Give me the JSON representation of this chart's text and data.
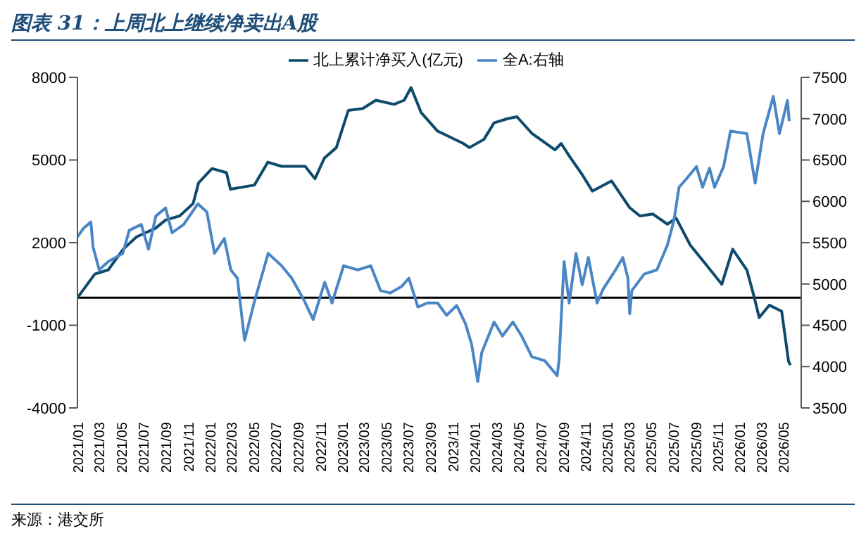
{
  "chart_data": {
    "type": "line",
    "title": "图表 31：上周北上继续净卖出A股",
    "annotations": [
      "来源：港交所"
    ],
    "legend": "top",
    "marker": "none",
    "line_style": "solid",
    "xlim": [
      "2021-01-01",
      "2026-06-20"
    ],
    "xticks": [
      {
        "value": "2021-01",
        "label": "2021/01"
      },
      {
        "value": "2021-03",
        "label": "2021/03"
      },
      {
        "value": "2021-05",
        "label": "2021/05"
      },
      {
        "value": "2021-07",
        "label": "2021/07"
      },
      {
        "value": "2021-09",
        "label": "2021/09"
      },
      {
        "value": "2021-11",
        "label": "2021/11"
      },
      {
        "value": "2022-01",
        "label": "2022/01"
      },
      {
        "value": "2022-03",
        "label": "2022/03"
      },
      {
        "value": "2022-05",
        "label": "2022/05"
      },
      {
        "value": "2022-07",
        "label": "2022/07"
      },
      {
        "value": "2022-09",
        "label": "2022/09"
      },
      {
        "value": "2022-11",
        "label": "2022/11"
      },
      {
        "value": "2023-01",
        "label": "2023/01"
      },
      {
        "value": "2023-03",
        "label": "2023/03"
      },
      {
        "value": "2023-05",
        "label": "2023/05"
      },
      {
        "value": "2023-07",
        "label": "2023/07"
      },
      {
        "value": "2023-09",
        "label": "2023/09"
      },
      {
        "value": "2023-11",
        "label": "2023/11"
      },
      {
        "value": "2024-01",
        "label": "2024/01"
      },
      {
        "value": "2024-03",
        "label": "2024/03"
      },
      {
        "value": "2024-05",
        "label": "2024/05"
      },
      {
        "value": "2024-07",
        "label": "2024/07"
      },
      {
        "value": "2024-09",
        "label": "2024/09"
      },
      {
        "value": "2024-11",
        "label": "2024/11"
      },
      {
        "value": "2025-01",
        "label": "2025/01"
      },
      {
        "value": "2025-03",
        "label": "2025/03"
      },
      {
        "value": "2025-05",
        "label": "2025/05"
      },
      {
        "value": "2025-07",
        "label": "2025/07"
      },
      {
        "value": "2025-09",
        "label": "2025/09"
      },
      {
        "value": "2025-11",
        "label": "2025/11"
      },
      {
        "value": "2026-01",
        "label": "2026/01"
      },
      {
        "value": "2026-03",
        "label": "2026/03"
      },
      {
        "value": "2026-05",
        "label": "2026/05"
      }
    ],
    "ylim": [
      -4000,
      8000
    ],
    "yticks": [
      -4000,
      -1000,
      2000,
      5000,
      8000
    ],
    "y2lim": [
      3500,
      7500
    ],
    "y2ticks": [
      3500,
      4000,
      4500,
      5000,
      5500,
      6000,
      6500,
      7000,
      7500
    ],
    "ref_lines": [
      {
        "axis": "y",
        "value": 0,
        "color": "#000000"
      }
    ],
    "series": [
      {
        "name": "北上累计净买入(亿元)",
        "color": "#0d4a6b",
        "x": [
          "2021-01-01",
          "2021-02-18",
          "2021-03-27",
          "2021-05-07",
          "2021-06-13",
          "2021-08-04",
          "2021-09-01",
          "2021-10-10",
          "2021-11-16",
          "2021-12-01",
          "2022-01-07",
          "2022-02-16",
          "2022-02-27",
          "2022-05-04",
          "2022-06-10",
          "2022-07-18",
          "2022-09-21",
          "2022-10-18",
          "2022-11-13",
          "2022-12-16",
          "2023-01-18",
          "2023-02-27",
          "2023-04-04",
          "2023-05-24",
          "2023-06-21",
          "2023-07-10",
          "2023-08-07",
          "2023-09-21",
          "2023-10-04",
          "2023-12-01",
          "2023-12-18",
          "2024-01-27",
          "2024-02-24",
          "2024-04-01",
          "2024-04-27",
          "2024-06-07",
          "2024-08-10",
          "2024-08-27",
          "2024-09-18",
          "2024-10-24",
          "2024-11-21",
          "2025-01-13",
          "2025-03-04",
          "2025-04-01",
          "2025-05-07",
          "2025-06-16",
          "2025-07-10",
          "2025-08-18",
          "2025-09-24",
          "2025-11-13",
          "2025-12-13",
          "2026-01-21",
          "2026-02-10",
          "2026-02-24",
          "2026-03-24",
          "2026-04-27",
          "2026-05-16",
          "2026-05-21"
        ],
        "values": [
          0,
          860,
          1010,
          1760,
          2210,
          2520,
          2820,
          2970,
          3420,
          4170,
          4690,
          4540,
          3940,
          4090,
          4920,
          4770,
          4770,
          4320,
          5070,
          5450,
          6800,
          6870,
          7170,
          7020,
          7170,
          7630,
          6720,
          6050,
          5970,
          5600,
          5450,
          5750,
          6350,
          6500,
          6570,
          5970,
          5370,
          5600,
          5150,
          4470,
          3870,
          4240,
          3270,
          2970,
          3040,
          2670,
          2890,
          1910,
          1310,
          490,
          1760,
          1010,
          40,
          -720,
          -270,
          -490,
          -2300,
          -2450
        ]
      },
      {
        "name": "全A:右轴",
        "color": "#4a86c5",
        "axis": "y2",
        "x": [
          "2021-01-01",
          "2021-01-17",
          "2021-02-07",
          "2021-02-13",
          "2021-03-02",
          "2021-03-27",
          "2021-05-06",
          "2021-05-24",
          "2021-06-26",
          "2021-07-16",
          "2021-08-05",
          "2021-09-01",
          "2021-09-19",
          "2021-10-21",
          "2021-11-29",
          "2021-12-24",
          "2022-01-14",
          "2022-02-10",
          "2022-02-28",
          "2022-03-18",
          "2022-04-07",
          "2022-05-03",
          "2022-06-11",
          "2022-07-18",
          "2022-08-15",
          "2022-09-16",
          "2022-10-13",
          "2022-11-14",
          "2022-12-04",
          "2023-01-05",
          "2023-02-13",
          "2023-03-21",
          "2023-04-17",
          "2023-05-13",
          "2023-06-14",
          "2023-07-04",
          "2023-07-29",
          "2023-08-24",
          "2023-09-21",
          "2023-10-16",
          "2023-11-13",
          "2023-12-07",
          "2023-12-24",
          "2024-01-10",
          "2024-01-21",
          "2024-02-24",
          "2024-03-18",
          "2024-04-16",
          "2024-05-10",
          "2024-06-07",
          "2024-07-13",
          "2024-08-16",
          "2024-08-21",
          "2024-09-04",
          "2024-09-18",
          "2024-10-07",
          "2024-10-24",
          "2024-11-10",
          "2024-12-04",
          "2024-12-21",
          "2025-01-24",
          "2025-02-13",
          "2025-02-27",
          "2025-03-04",
          "2025-03-10",
          "2025-04-13",
          "2025-05-18",
          "2025-06-16",
          "2025-07-04",
          "2025-07-18",
          "2025-08-07",
          "2025-09-04",
          "2025-09-21",
          "2025-10-10",
          "2025-10-24",
          "2025-11-18",
          "2025-12-07",
          "2026-01-21",
          "2026-02-13",
          "2026-03-07",
          "2026-04-04",
          "2026-04-21",
          "2026-05-13",
          "2026-05-18"
        ],
        "values": [
          5570,
          5670,
          5750,
          5450,
          5170,
          5270,
          5370,
          5650,
          5720,
          5420,
          5820,
          5920,
          5620,
          5720,
          5970,
          5870,
          5370,
          5550,
          5170,
          5070,
          4320,
          4770,
          5370,
          5220,
          5070,
          4820,
          4570,
          5020,
          4770,
          5220,
          5170,
          5220,
          4920,
          4890,
          4970,
          5070,
          4720,
          4770,
          4770,
          4620,
          4740,
          4520,
          4270,
          3820,
          4170,
          4540,
          4370,
          4540,
          4370,
          4120,
          4070,
          3890,
          4070,
          5270,
          4770,
          5370,
          4990,
          5320,
          4770,
          4940,
          5170,
          5320,
          5070,
          4640,
          4920,
          5120,
          5170,
          5470,
          5770,
          6170,
          6270,
          6420,
          6170,
          6400,
          6170,
          6420,
          6850,
          6820,
          6220,
          6820,
          7270,
          6820,
          7220,
          6970
        ]
      }
    ]
  }
}
